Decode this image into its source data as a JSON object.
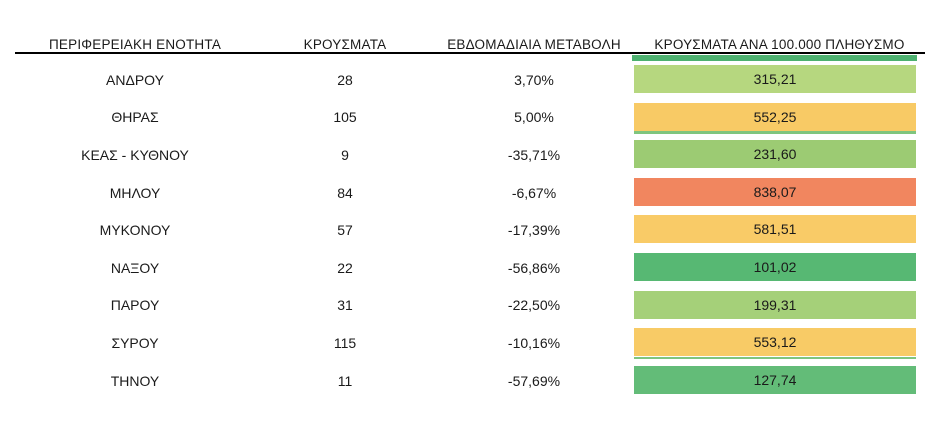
{
  "table": {
    "headers": [
      "ΠΕΡΙΦΕΡΕΙΑΚΗ ΕΝΟΤΗΤΑ",
      "ΚΡΟΥΣΜΑΤΑ",
      "ΕΒΔΟΜΑΔΙΑΙΑ ΜΕΤΑΒΟΛΗ",
      "ΚΡΟΥΣΜΑΤΑ ΑΝΑ 100.000 ΠΛΗΘΥΣΜΟ"
    ],
    "top_strip_color": "#4DB170",
    "rows": [
      {
        "region": "ΑΝΔΡΟΥ",
        "cases": "28",
        "weekly_change": "3,70%",
        "per_100k": "315,21",
        "bar_color": "#B6D77F",
        "strip_below": null
      },
      {
        "region": "ΘΗΡΑΣ",
        "cases": "105",
        "weekly_change": "5,00%",
        "per_100k": "552,25",
        "bar_color": "#F8CA65",
        "strip_below": "#7FC57E"
      },
      {
        "region": "ΚΕΑΣ - ΚΥΘΝΟΥ",
        "cases": "9",
        "weekly_change": "-35,71%",
        "per_100k": "231,60",
        "bar_color": "#9CCB73",
        "strip_below": null
      },
      {
        "region": "ΜΗΛΟΥ",
        "cases": "84",
        "weekly_change": "-6,67%",
        "per_100k": "838,07",
        "bar_color": "#F1865F",
        "strip_below": null
      },
      {
        "region": "ΜΥΚΟΝΟΥ",
        "cases": "57",
        "weekly_change": "-17,39%",
        "per_100k": "581,51",
        "bar_color": "#F9CB67",
        "strip_below": null
      },
      {
        "region": "ΝΑΞΟΥ",
        "cases": "22",
        "weekly_change": "-56,86%",
        "per_100k": "101,02",
        "bar_color": "#57B873",
        "strip_below": null
      },
      {
        "region": "ΠΑΡΟΥ",
        "cases": "31",
        "weekly_change": "-22,50%",
        "per_100k": "199,31",
        "bar_color": "#A5D079",
        "strip_below": null
      },
      {
        "region": "ΣΥΡΟΥ",
        "cases": "115",
        "weekly_change": "-10,16%",
        "per_100k": "553,12",
        "bar_color": "#F8CB66",
        "strip_below": "#7FC57E"
      },
      {
        "region": "ΤΗΝΟΥ",
        "cases": "11",
        "weekly_change": "-57,69%",
        "per_100k": "127,74",
        "bar_color": "#63BC78",
        "strip_below": null
      }
    ]
  },
  "chart_data": {
    "type": "table",
    "title": "",
    "columns": [
      "ΠΕΡΙΦΕΡΕΙΑΚΗ ΕΝΟΤΗΤΑ",
      "ΚΡΟΥΣΜΑΤΑ",
      "ΕΒΔΟΜΑΔΙΑΙΑ ΜΕΤΑΒΟΛΗ",
      "ΚΡΟΥΣΜΑΤΑ ΑΝΑ 100.000 ΠΛΗΘΥΣΜΟ"
    ],
    "categories": [
      "ΑΝΔΡΟΥ",
      "ΘΗΡΑΣ",
      "ΚΕΑΣ - ΚΥΘΝΟΥ",
      "ΜΗΛΟΥ",
      "ΜΥΚΟΝΟΥ",
      "ΝΑΞΟΥ",
      "ΠΑΡΟΥ",
      "ΣΥΡΟΥ",
      "ΤΗΝΟΥ"
    ],
    "series": [
      {
        "name": "ΚΡΟΥΣΜΑΤΑ",
        "values": [
          28,
          105,
          9,
          84,
          57,
          22,
          31,
          115,
          11
        ]
      },
      {
        "name": "ΕΒΔΟΜΑΔΙΑΙΑ ΜΕΤΑΒΟΛΗ (%)",
        "values": [
          3.7,
          5.0,
          -35.71,
          -6.67,
          -17.39,
          -56.86,
          -22.5,
          -10.16,
          -57.69
        ]
      },
      {
        "name": "ΚΡΟΥΣΜΑΤΑ ΑΝΑ 100.000 ΠΛΗΘΥΣΜΟ",
        "values": [
          315.21,
          552.25,
          231.6,
          838.07,
          581.51,
          101.02,
          199.31,
          553.12,
          127.74
        ]
      }
    ],
    "layout_hints": {
      "conditional_formatting": "green-yellow-red color scale on per-100k column (low=green, high=red)",
      "grid": false,
      "legend": false
    }
  }
}
